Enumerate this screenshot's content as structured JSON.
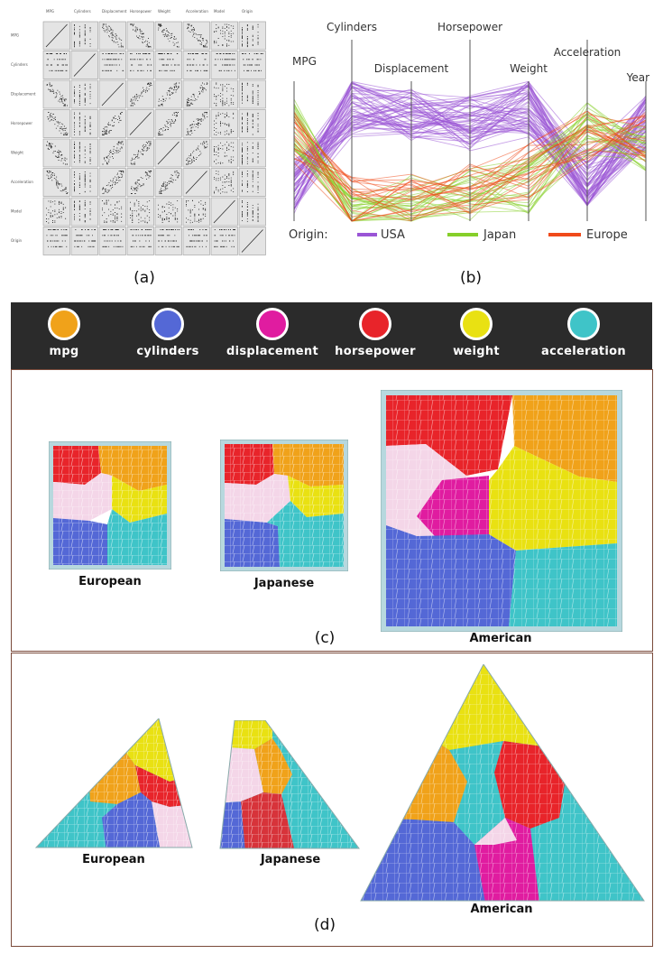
{
  "captions": {
    "a": "(a)",
    "b": "(b)",
    "c": "(c)",
    "d": "(d)"
  },
  "scatter_matrix": {
    "row_labels": [
      "MPG",
      "Cylinders",
      "Displacement",
      "Horsepower",
      "Weight",
      "Acceleration",
      "Model",
      "Origin"
    ],
    "col_labels": [
      "MPG",
      "Cylinders",
      "Displacement",
      "Horsepower",
      "Weight",
      "Acceleration",
      "Model",
      "Origin"
    ]
  },
  "parallel": {
    "axes": [
      "MPG",
      "Cylinders",
      "Displacement",
      "Horsepower",
      "Weight",
      "Acceleration",
      "Year"
    ],
    "origin_label": "Origin:",
    "origins": [
      {
        "name": "USA",
        "color": "#9a55d6"
      },
      {
        "name": "Japan",
        "color": "#86cf2a"
      },
      {
        "name": "Europe",
        "color": "#f04a1a"
      }
    ]
  },
  "legend": [
    {
      "label": "mpg",
      "color": "#f0a21a"
    },
    {
      "label": "cylinders",
      "color": "#5468d6"
    },
    {
      "label": "displacement",
      "color": "#e01ca0"
    },
    {
      "label": "horsepower",
      "color": "#e8242a"
    },
    {
      "label": "weight",
      "color": "#e9e112"
    },
    {
      "label": "acceleration",
      "color": "#3fc4c8"
    }
  ],
  "treemaps": {
    "european": "European",
    "japanese": "Japanese",
    "american": "American"
  },
  "triangles": {
    "european": "European",
    "japanese": "Japanese",
    "american": "American"
  }
}
